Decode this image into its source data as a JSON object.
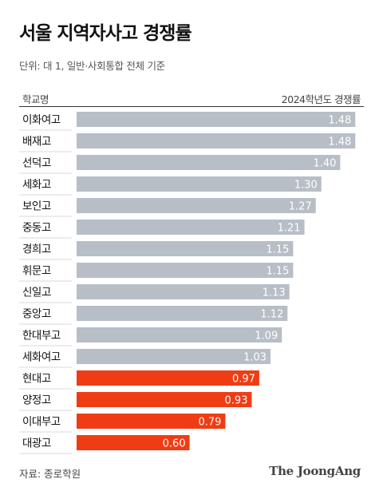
{
  "header": {
    "title": "서울 지역자사고 경쟁률",
    "subtitle": "단위: 대 1, 일반·사회통합 전체 기준",
    "col_left": "학교명",
    "col_right": "2024학년도 경쟁률"
  },
  "footer": {
    "source": "자료: 종로학원",
    "brand": "The JoongAng"
  },
  "colors": {
    "bar_default": "#b8bec6",
    "bar_highlight": "#f03c14",
    "value_text": "#ffffff"
  },
  "chart_data": {
    "type": "bar",
    "orientation": "horizontal",
    "categories": [
      "이화여고",
      "배재고",
      "선덕고",
      "세화고",
      "보인고",
      "중동고",
      "경희고",
      "휘문고",
      "신일고",
      "중앙고",
      "한대부고",
      "세화여고",
      "현대고",
      "양정고",
      "이대부고",
      "대광고"
    ],
    "values": [
      1.48,
      1.48,
      1.4,
      1.3,
      1.27,
      1.21,
      1.15,
      1.15,
      1.13,
      1.12,
      1.09,
      1.03,
      0.97,
      0.93,
      0.79,
      0.6
    ],
    "value_labels": [
      "1.48",
      "1.48",
      "1.40",
      "1.30",
      "1.27",
      "1.21",
      "1.15",
      "1.15",
      "1.13",
      "1.12",
      "1.09",
      "1.03",
      "0.97",
      "0.93",
      "0.79",
      "0.60"
    ],
    "highlight": [
      false,
      false,
      false,
      false,
      false,
      false,
      false,
      false,
      false,
      false,
      false,
      false,
      true,
      true,
      true,
      true
    ],
    "xlim": [
      0,
      1.5
    ],
    "grid": false,
    "legend": "none"
  }
}
